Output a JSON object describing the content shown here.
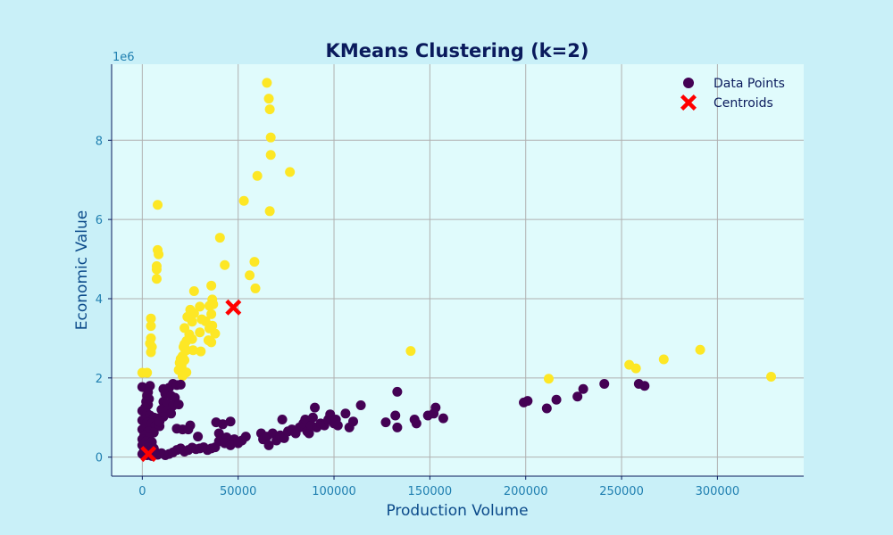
{
  "chart_data": {
    "type": "scatter",
    "title": "KMeans Clustering (k=2)",
    "xlabel": "Production Volume",
    "ylabel": "Economic Value",
    "y_offset_text": "1e6",
    "xlim": [
      -16000,
      345000
    ],
    "ylim": [
      -0.48,
      9.92
    ],
    "y_scale_multiplier": 1000000,
    "xticks": [
      0,
      50000,
      100000,
      150000,
      200000,
      250000,
      300000
    ],
    "yticks": [
      0,
      2,
      4,
      6,
      8
    ],
    "grid": true,
    "legend_placement": "top-right",
    "colors": {
      "background": "#c9f0f8",
      "plot_background": "#e0fbfc",
      "cluster_0": "#440154",
      "cluster_1": "#fde725",
      "centroid": "#ff0000",
      "grid": "#b0b0b0",
      "tick_text": "#1f7fb0",
      "title_text": "#0a1a5c"
    },
    "legend": [
      {
        "label": "Data Points",
        "marker": "circle",
        "color": "#440154"
      },
      {
        "label": "Centroids",
        "marker": "X",
        "color": "#ff0000"
      }
    ],
    "series": [
      {
        "name": "Data Points",
        "cluster": 1,
        "color": "#fde725",
        "points": [
          [
            65000,
            9.45
          ],
          [
            66000,
            9.05
          ],
          [
            66500,
            8.78
          ],
          [
            67000,
            8.07
          ],
          [
            67000,
            7.63
          ],
          [
            77000,
            7.2
          ],
          [
            60000,
            7.1
          ],
          [
            8000,
            6.37
          ],
          [
            53000,
            6.47
          ],
          [
            66500,
            6.21
          ],
          [
            8000,
            5.23
          ],
          [
            8500,
            5.12
          ],
          [
            40500,
            5.54
          ],
          [
            7500,
            4.82
          ],
          [
            7500,
            4.74
          ],
          [
            7500,
            4.5
          ],
          [
            43000,
            4.85
          ],
          [
            58500,
            4.93
          ],
          [
            56000,
            4.59
          ],
          [
            59000,
            4.26
          ],
          [
            36000,
            4.33
          ],
          [
            27000,
            4.19
          ],
          [
            36500,
            3.98
          ],
          [
            37000,
            3.86
          ],
          [
            35000,
            3.82
          ],
          [
            30000,
            3.8
          ],
          [
            25000,
            3.72
          ],
          [
            27000,
            3.63
          ],
          [
            23500,
            3.54
          ],
          [
            4500,
            3.5
          ],
          [
            36000,
            3.61
          ],
          [
            31000,
            3.48
          ],
          [
            33000,
            3.43
          ],
          [
            26000,
            3.42
          ],
          [
            4500,
            3.31
          ],
          [
            36500,
            3.32
          ],
          [
            38000,
            3.12
          ],
          [
            35000,
            3.25
          ],
          [
            22000,
            3.26
          ],
          [
            30000,
            3.15
          ],
          [
            24500,
            3.1
          ],
          [
            4500,
            3.0
          ],
          [
            26000,
            2.98
          ],
          [
            23000,
            2.93
          ],
          [
            36000,
            2.9
          ],
          [
            34500,
            2.95
          ],
          [
            22000,
            2.85
          ],
          [
            4000,
            2.87
          ],
          [
            5000,
            2.78
          ],
          [
            21500,
            2.78
          ],
          [
            23000,
            2.7
          ],
          [
            26500,
            2.7
          ],
          [
            30500,
            2.67
          ],
          [
            4500,
            2.65
          ],
          [
            21000,
            2.55
          ],
          [
            20000,
            2.48
          ],
          [
            22000,
            2.45
          ],
          [
            19500,
            2.38
          ],
          [
            20500,
            2.3
          ],
          [
            19000,
            2.2
          ],
          [
            21000,
            2.18
          ],
          [
            23000,
            2.14
          ],
          [
            0,
            2.13
          ],
          [
            2500,
            2.13
          ],
          [
            21000,
            2.05
          ],
          [
            140000,
            2.68
          ],
          [
            212000,
            1.98
          ],
          [
            254000,
            2.33
          ],
          [
            257500,
            2.24
          ],
          [
            272000,
            2.47
          ],
          [
            291000,
            2.71
          ],
          [
            328000,
            2.03
          ]
        ]
      },
      {
        "name": "Data Points",
        "cluster": 0,
        "color": "#440154",
        "points": [
          [
            0,
            1.77
          ],
          [
            4000,
            1.8
          ],
          [
            3000,
            1.64
          ],
          [
            2500,
            1.55
          ],
          [
            3500,
            1.47
          ],
          [
            2000,
            1.4
          ],
          [
            3000,
            1.32
          ],
          [
            1500,
            1.25
          ],
          [
            0,
            1.17
          ],
          [
            2500,
            1.1
          ],
          [
            4000,
            1.05
          ],
          [
            6000,
            1.0
          ],
          [
            8000,
            0.98
          ],
          [
            0,
            0.93
          ],
          [
            2500,
            0.88
          ],
          [
            5000,
            0.85
          ],
          [
            7000,
            0.8
          ],
          [
            9000,
            0.78
          ],
          [
            0,
            0.7
          ],
          [
            3000,
            0.65
          ],
          [
            6000,
            0.62
          ],
          [
            1000,
            0.55
          ],
          [
            3500,
            0.5
          ],
          [
            0,
            0.45
          ],
          [
            2000,
            0.4
          ],
          [
            5000,
            0.38
          ],
          [
            0,
            0.3
          ],
          [
            3000,
            0.25
          ],
          [
            6000,
            0.22
          ],
          [
            1000,
            0.18
          ],
          [
            4000,
            0.14
          ],
          [
            7000,
            0.12
          ],
          [
            0,
            0.08
          ],
          [
            2500,
            0.05
          ],
          [
            5000,
            0.03
          ],
          [
            8000,
            0.06
          ],
          [
            10000,
            0.1
          ],
          [
            12000,
            0.05
          ],
          [
            14000,
            0.08
          ],
          [
            16000,
            0.12
          ],
          [
            18000,
            0.18
          ],
          [
            20000,
            0.22
          ],
          [
            22000,
            0.14
          ],
          [
            24000,
            0.18
          ],
          [
            26000,
            0.24
          ],
          [
            28000,
            0.2
          ],
          [
            30000,
            0.22
          ],
          [
            32000,
            0.25
          ],
          [
            34000,
            0.18
          ],
          [
            36000,
            0.22
          ],
          [
            38000,
            0.25
          ],
          [
            11000,
            1.72
          ],
          [
            14000,
            1.75
          ],
          [
            16000,
            1.85
          ],
          [
            18000,
            1.82
          ],
          [
            20000,
            1.83
          ],
          [
            12000,
            1.6
          ],
          [
            15000,
            1.55
          ],
          [
            17000,
            1.5
          ],
          [
            11000,
            1.4
          ],
          [
            13000,
            1.35
          ],
          [
            16000,
            1.3
          ],
          [
            19000,
            1.33
          ],
          [
            10000,
            1.2
          ],
          [
            13000,
            1.15
          ],
          [
            15000,
            1.1
          ],
          [
            11000,
            1.02
          ],
          [
            9000,
            0.9
          ],
          [
            18000,
            0.72
          ],
          [
            21000,
            0.7
          ],
          [
            25000,
            0.8
          ],
          [
            29000,
            0.52
          ],
          [
            24000,
            0.7
          ],
          [
            38500,
            0.88
          ],
          [
            42000,
            0.83
          ],
          [
            46000,
            0.9
          ],
          [
            40000,
            0.6
          ],
          [
            44000,
            0.5
          ],
          [
            48000,
            0.45
          ],
          [
            52000,
            0.42
          ],
          [
            54000,
            0.52
          ],
          [
            40000,
            0.4
          ],
          [
            43000,
            0.35
          ],
          [
            46000,
            0.3
          ],
          [
            50000,
            0.35
          ],
          [
            62000,
            0.6
          ],
          [
            63000,
            0.45
          ],
          [
            65000,
            0.52
          ],
          [
            66000,
            0.3
          ],
          [
            68000,
            0.6
          ],
          [
            70000,
            0.42
          ],
          [
            72000,
            0.55
          ],
          [
            73000,
            0.95
          ],
          [
            74000,
            0.48
          ],
          [
            76000,
            0.65
          ],
          [
            78000,
            0.7
          ],
          [
            80000,
            0.6
          ],
          [
            82000,
            0.75
          ],
          [
            84000,
            0.85
          ],
          [
            85000,
            0.95
          ],
          [
            86000,
            0.65
          ],
          [
            87000,
            0.6
          ],
          [
            88000,
            0.8
          ],
          [
            89000,
            1.0
          ],
          [
            90000,
            1.25
          ],
          [
            91000,
            0.75
          ],
          [
            93000,
            0.85
          ],
          [
            95000,
            0.8
          ],
          [
            97000,
            0.95
          ],
          [
            98000,
            1.08
          ],
          [
            100000,
            0.85
          ],
          [
            101000,
            0.95
          ],
          [
            102000,
            0.8
          ],
          [
            106000,
            1.1
          ],
          [
            108000,
            0.75
          ],
          [
            110000,
            0.9
          ],
          [
            114000,
            1.31
          ],
          [
            127000,
            0.88
          ],
          [
            132000,
            1.05
          ],
          [
            133000,
            1.65
          ],
          [
            133000,
            0.75
          ],
          [
            142000,
            0.95
          ],
          [
            143000,
            0.85
          ],
          [
            149000,
            1.05
          ],
          [
            152000,
            1.1
          ],
          [
            153000,
            1.25
          ],
          [
            157000,
            0.98
          ],
          [
            199000,
            1.38
          ],
          [
            201000,
            1.42
          ],
          [
            211000,
            1.23
          ],
          [
            216000,
            1.45
          ],
          [
            227000,
            1.53
          ],
          [
            230000,
            1.72
          ],
          [
            241000,
            1.85
          ],
          [
            259000,
            1.85
          ],
          [
            262000,
            1.8
          ]
        ]
      },
      {
        "name": "Centroids",
        "color": "#ff0000",
        "marker": "X",
        "points": [
          [
            47500,
            3.78
          ],
          [
            3200,
            0.08
          ]
        ]
      }
    ]
  }
}
